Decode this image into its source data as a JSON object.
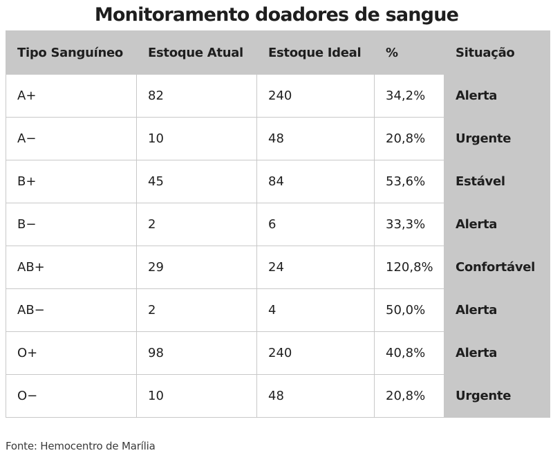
{
  "title": "Monitoramento doadores de sangue",
  "table": {
    "headers": [
      "Tipo Sanguíneo",
      "Estoque Atual",
      "Estoque Ideal",
      "%",
      "Situação"
    ],
    "rows": [
      [
        "A+",
        "82",
        "240",
        "34,2%",
        "Alerta"
      ],
      [
        "A−",
        "10",
        "48",
        "20,8%",
        "Urgente"
      ],
      [
        "B+",
        "45",
        "84",
        "53,6%",
        "Estável"
      ],
      [
        "B−",
        "2",
        "6",
        "33,3%",
        "Alerta"
      ],
      [
        "AB+",
        "29",
        "24",
        "120,8%",
        "Confortável"
      ],
      [
        "AB−",
        "2",
        "4",
        "50,0%",
        "Alerta"
      ],
      [
        "O+",
        "98",
        "240",
        "40,8%",
        "Alerta"
      ],
      [
        "O−",
        "10",
        "48",
        "20,8%",
        "Urgente"
      ]
    ]
  },
  "source": "Fonte: Hemocentro de Marília",
  "colors": {
    "header_bg": "#c8c8c8",
    "status_bg": "#c8c8c8",
    "border": "#c8c8c8",
    "text": "#1e1e1e"
  }
}
